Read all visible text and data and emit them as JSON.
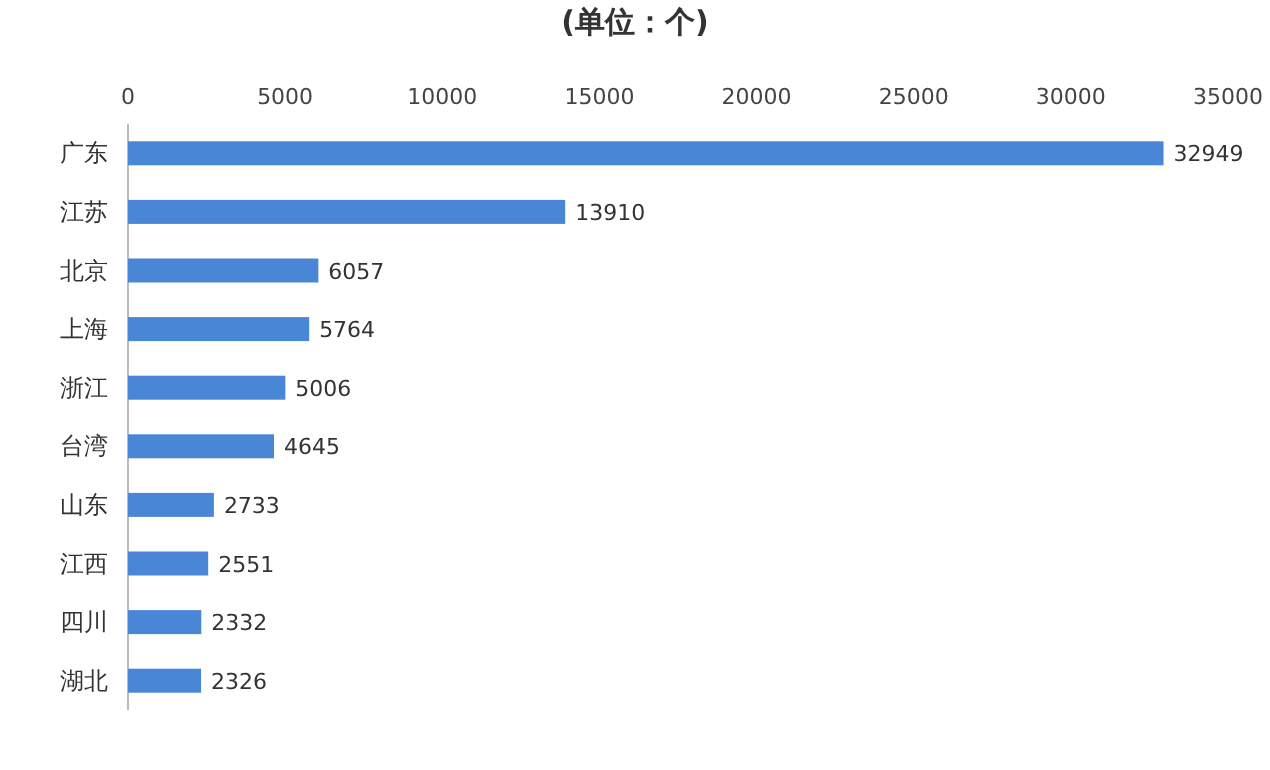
{
  "chart_data": {
    "type": "bar",
    "orientation": "horizontal",
    "title": "(单位：个)",
    "categories": [
      "广东",
      "江苏",
      "北京",
      "上海",
      "浙江",
      "台湾",
      "山东",
      "江西",
      "四川",
      "湖北"
    ],
    "values": [
      32949,
      13910,
      6057,
      5764,
      5006,
      4645,
      2733,
      2551,
      2332,
      2326
    ],
    "color": "#4a86d6",
    "xlim": [
      0,
      35000
    ],
    "xticks": [
      0,
      5000,
      10000,
      15000,
      20000,
      25000,
      30000,
      35000
    ],
    "data_labels": true
  }
}
